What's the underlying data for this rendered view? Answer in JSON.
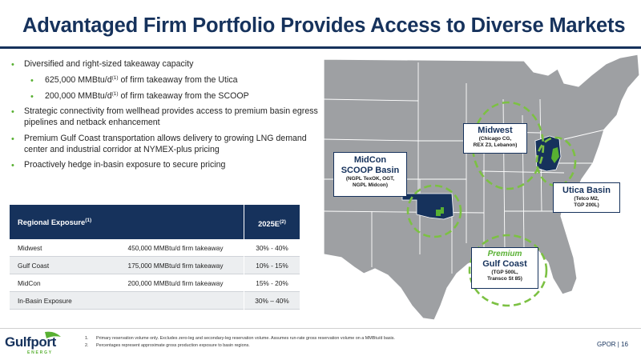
{
  "title": "Advantaged Firm Portfolio Provides Access to Diverse Markets",
  "bullets": {
    "b1": "Diversified and right-sized takeaway capacity",
    "b1a_pre": "625,000 MMBtu/d",
    "b1a_sup": "(1)",
    "b1a_post": " of firm takeaway from the Utica",
    "b1b_pre": "200,000 MMBtu/d",
    "b1b_sup": "(1)",
    "b1b_post": " of firm takeaway from the SCOOP",
    "b2": "Strategic connectivity from wellhead provides access to premium basin egress pipelines and netback enhancement",
    "b3": "Premium Gulf Coast transportation allows delivery to growing LNG demand center and industrial corridor at NYMEX-plus pricing",
    "b4": "Proactively hedge in-basin exposure to secure pricing"
  },
  "table": {
    "header_label": "Regional Exposure",
    "header_sup": "(1)",
    "header_col": "2025E",
    "header_col_sup": "(2)",
    "rows": [
      {
        "region": "Midwest",
        "capacity": "450,000 MMBtu/d firm takeaway",
        "pct": "30% - 40%"
      },
      {
        "region": "Gulf Coast",
        "capacity": "175,000 MMBtu/d firm takeaway",
        "pct": "10% - 15%"
      },
      {
        "region": "MidCon",
        "capacity": "200,000 MMBtu/d firm takeaway",
        "pct": "15% - 20%"
      },
      {
        "region": "In-Basin Exposure",
        "capacity": "",
        "pct": "30% – 40%"
      }
    ]
  },
  "callouts": {
    "midwest": {
      "title": "Midwest",
      "sub1": "(Chicago CG,",
      "sub2": "REX Z3, Lebanon)"
    },
    "midcon": {
      "title1": "MidCon",
      "title2": "SCOOP Basin",
      "sub1": "(NGPL TexOK, OGT,",
      "sub2": "NGPL Midcon)"
    },
    "utica": {
      "title": "Utica Basin",
      "sub1": "(Tetco M2,",
      "sub2": "TGP 200L)"
    },
    "gulf": {
      "premium": "Premium",
      "title": "Gulf Coast",
      "sub1": "(TGP 500L,",
      "sub2": "Transco St 85)"
    }
  },
  "logo": {
    "word": "Gulfport",
    "sub": "ENERGY"
  },
  "footnotes": [
    {
      "n": "1.",
      "text": "Primary reservation volume only. Excludes zero-leg and secondary-leg reservation volume. Assumes run-rate gross reservation volume on a MMBtu/d basis."
    },
    {
      "n": "2.",
      "text": "Percentages represent approximate gross production exposure to basin regions."
    }
  ],
  "page": "GPOR | 16",
  "colors": {
    "navy": "#16325c",
    "green": "#58b032",
    "map_gray": "#9ea0a3"
  }
}
